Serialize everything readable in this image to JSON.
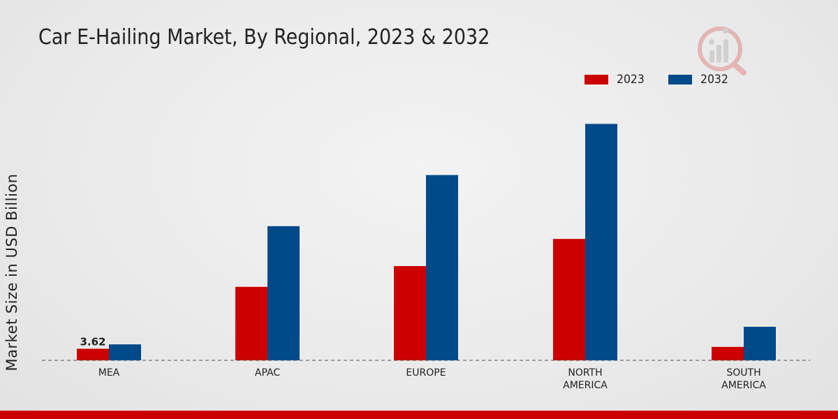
{
  "chart_data": {
    "type": "bar",
    "title": "Car E-Hailing Market, By Regional, 2023 & 2032",
    "xlabel": "",
    "ylabel": "Market Size in USD Billion",
    "categories": [
      "MEA",
      "APAC",
      "EUROPE",
      "NORTH\nAMERICA",
      "SOUTH\nAMERICA"
    ],
    "series": [
      {
        "name": "2023",
        "color": "#cc0000",
        "values": [
          3.62,
          23.0,
          29.5,
          38.0,
          4.2
        ]
      },
      {
        "name": "2032",
        "color": "#004a8a",
        "values": [
          5.0,
          42.0,
          58.0,
          74.0,
          10.5
        ]
      }
    ],
    "data_labels": [
      {
        "series": 0,
        "index": 0,
        "text": "3.62"
      }
    ],
    "ylim": [
      0,
      80
    ],
    "grid": false,
    "legend_position": "top-right"
  },
  "colors": {
    "accent": "#cc0000",
    "secondary": "#004a8a",
    "baseline": "#555555",
    "text": "#222222"
  },
  "watermark_icon": "analytics-logo-icon"
}
